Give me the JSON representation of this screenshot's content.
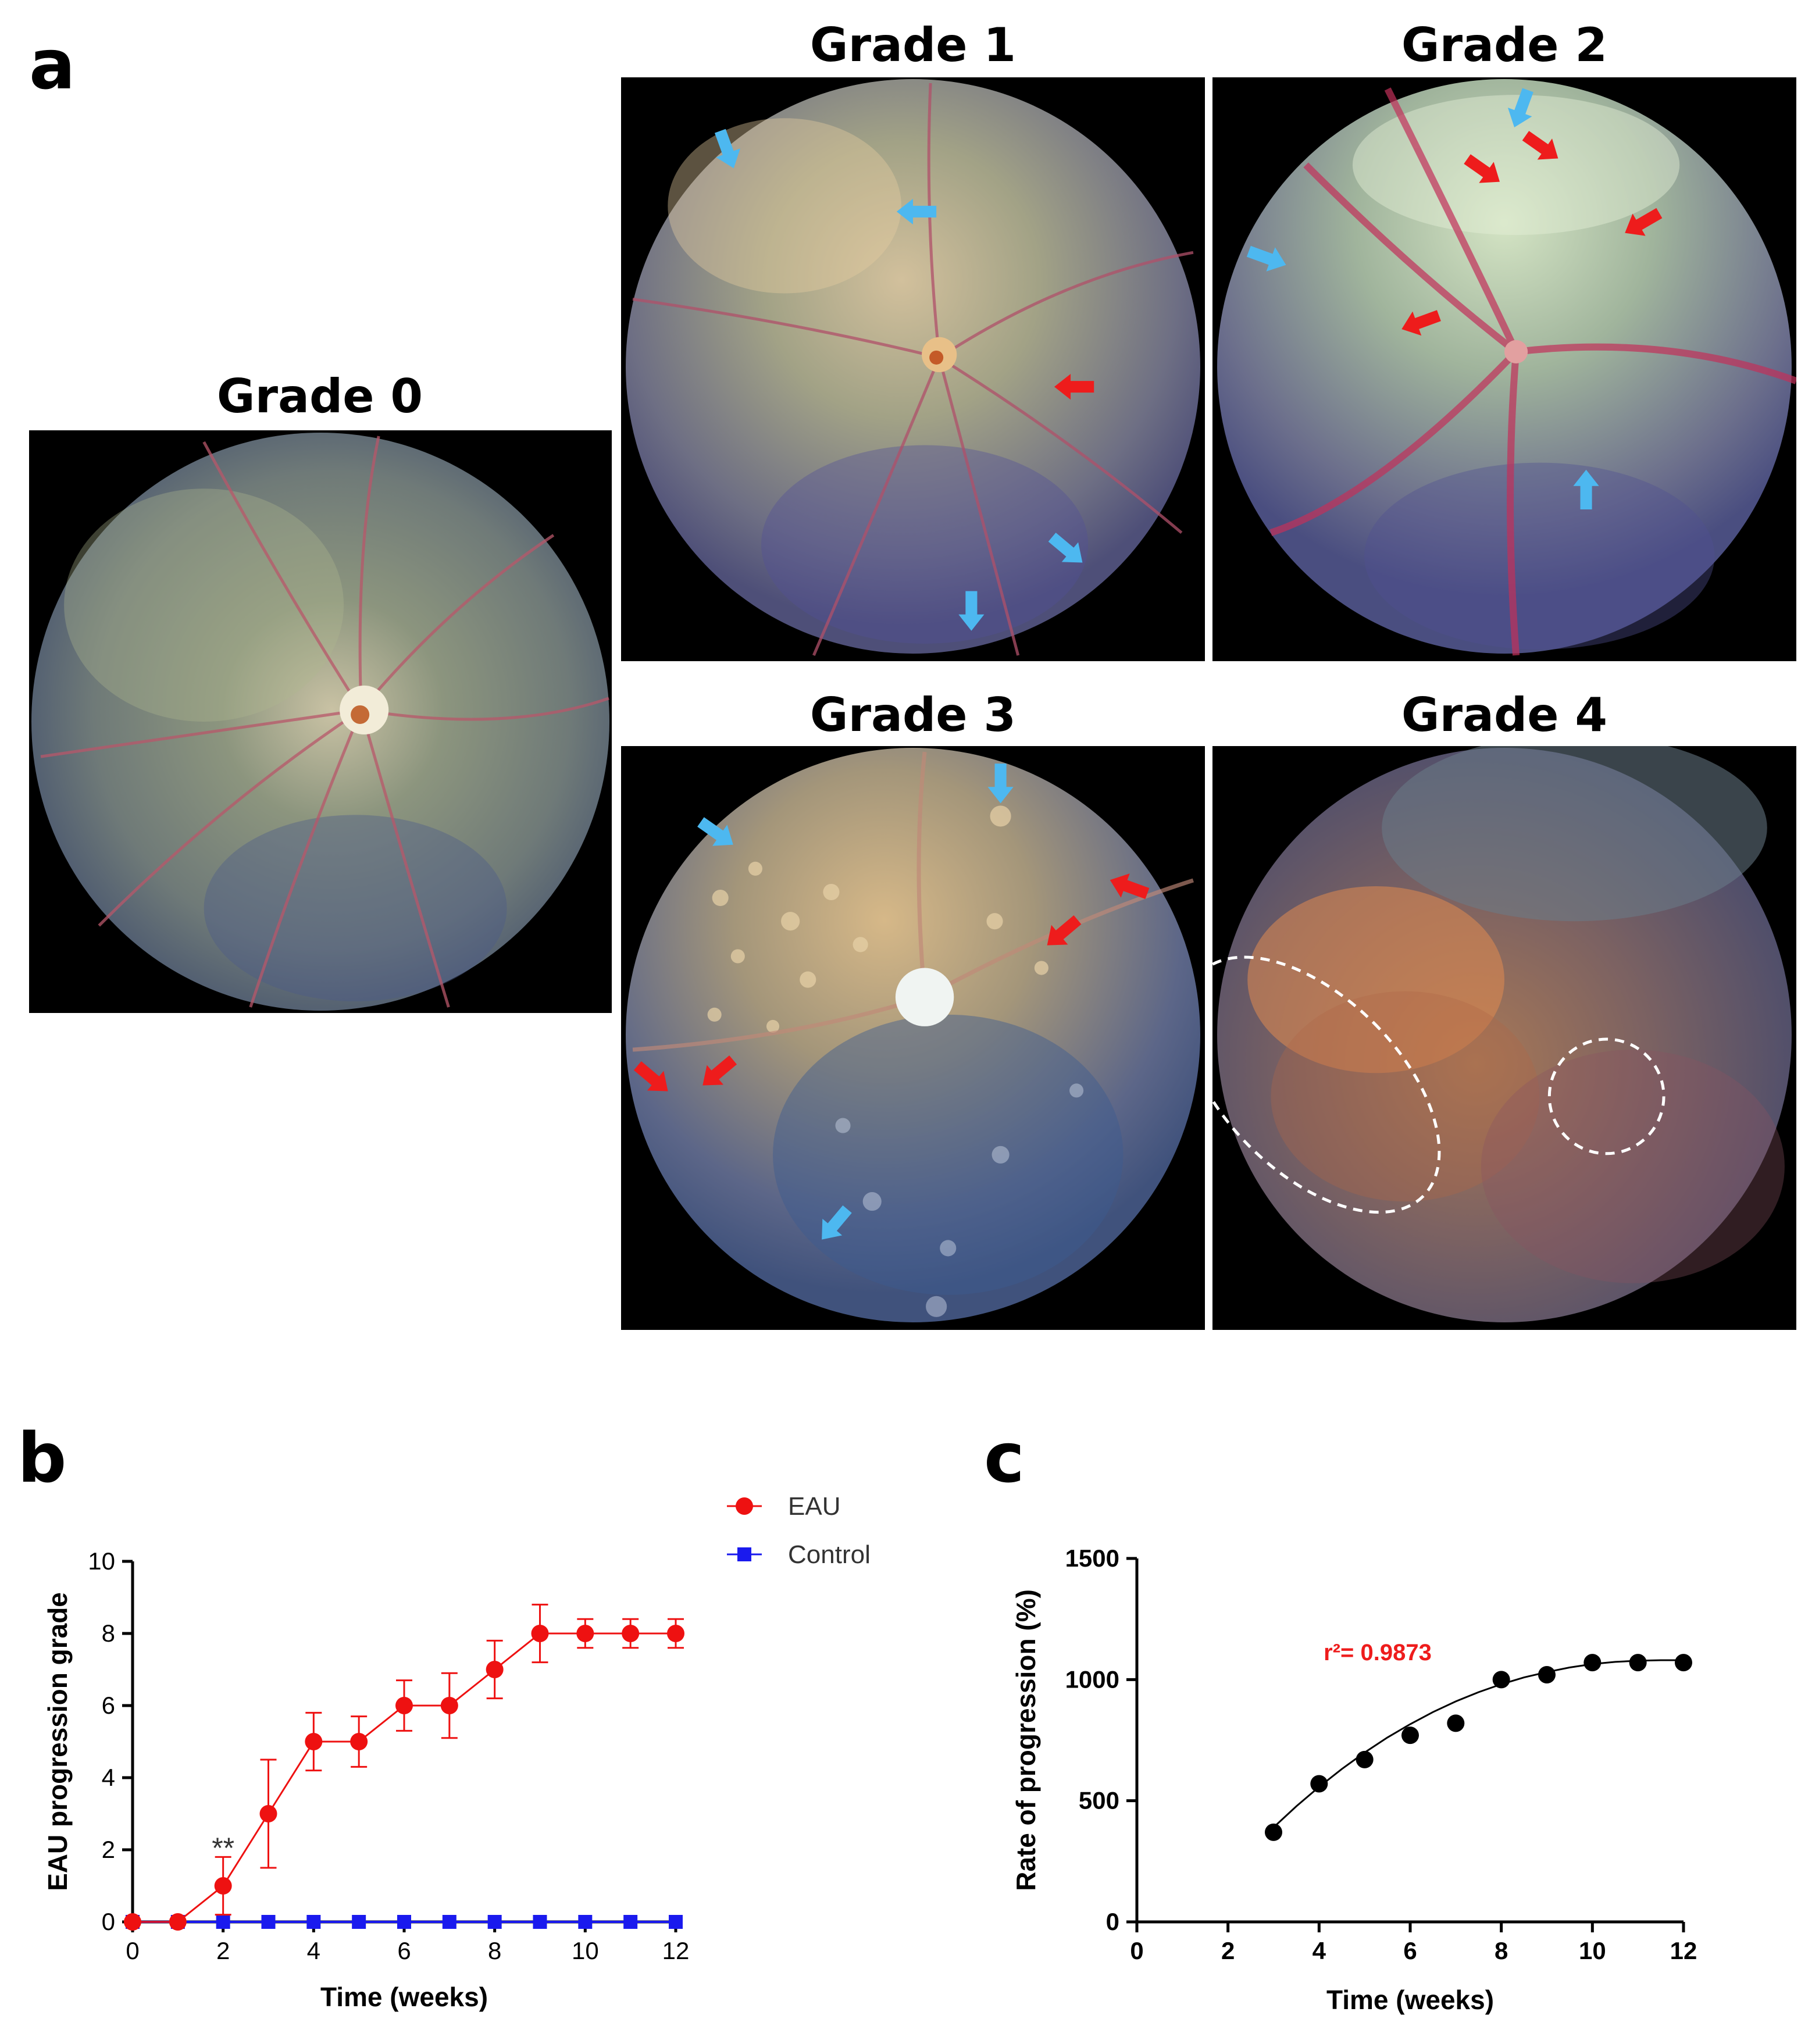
{
  "figure": {
    "panel_a": {
      "letter": "a",
      "grades": [
        {
          "id": "g0",
          "title": "Grade 0"
        },
        {
          "id": "g1",
          "title": "Grade 1"
        },
        {
          "id": "g2",
          "title": "Grade 2"
        },
        {
          "id": "g3",
          "title": "Grade 3"
        },
        {
          "id": "g4",
          "title": "Grade 4"
        }
      ],
      "arrow_colors": {
        "blue": "#4db8f0",
        "red": "#ee1c1c"
      }
    },
    "panel_b": {
      "letter": "b"
    },
    "panel_c": {
      "letter": "c"
    }
  },
  "chart_data": [
    {
      "id": "b",
      "type": "line",
      "xlabel": "Time (weeks)",
      "ylabel": "EAU progression grade",
      "xlim": [
        0,
        12
      ],
      "ylim": [
        0,
        10
      ],
      "xticks": [
        0,
        2,
        4,
        6,
        8,
        10,
        12
      ],
      "yticks": [
        0,
        2,
        4,
        6,
        8,
        10
      ],
      "series": [
        {
          "name": "EAU",
          "color": "#ee1111",
          "marker": "circle",
          "x": [
            0,
            1,
            2,
            3,
            4,
            5,
            6,
            7,
            8,
            9,
            10,
            11,
            12
          ],
          "y": [
            0,
            0,
            1,
            3,
            5,
            5,
            6,
            6,
            7,
            8,
            8,
            8,
            8
          ],
          "err": [
            0,
            0,
            0.8,
            1.5,
            0.8,
            0.7,
            0.7,
            0.9,
            0.8,
            0.8,
            0.4,
            0.4,
            0.4
          ]
        },
        {
          "name": "Control",
          "color": "#1a1aee",
          "marker": "square",
          "x": [
            0,
            1,
            2,
            3,
            4,
            5,
            6,
            7,
            8,
            9,
            10,
            11,
            12
          ],
          "y": [
            0,
            0,
            0,
            0,
            0,
            0,
            0,
            0,
            0,
            0,
            0,
            0,
            0
          ]
        }
      ],
      "annotations": [
        {
          "x": 2,
          "y": 1,
          "text": "**"
        }
      ],
      "legend": {
        "placement": "top-right",
        "entries": [
          "EAU",
          "Control"
        ]
      }
    },
    {
      "id": "c",
      "type": "scatter",
      "xlabel": "Time (weeks)",
      "ylabel": "Rate of progression (%)",
      "xlim": [
        0,
        12
      ],
      "ylim": [
        0,
        1500
      ],
      "xticks": [
        0,
        2,
        4,
        6,
        8,
        10,
        12
      ],
      "yticks": [
        0,
        500,
        1000,
        1500
      ],
      "series": [
        {
          "name": "points",
          "color": "#000000",
          "x": [
            3,
            4,
            5,
            6,
            7,
            8,
            9,
            10,
            11,
            12
          ],
          "y": [
            370,
            570,
            670,
            770,
            820,
            1000,
            1020,
            1070,
            1070,
            1070
          ]
        }
      ],
      "fit": {
        "type": "polynomial",
        "color": "#000000",
        "x": [
          3,
          3.5,
          4,
          4.5,
          5,
          5.5,
          6,
          6.5,
          7,
          7.5,
          8,
          8.5,
          9,
          9.5,
          10,
          10.5,
          11,
          11.5,
          12
        ],
        "y": [
          390,
          477,
          557,
          631,
          699,
          761,
          816,
          866,
          910,
          948,
          981,
          1009,
          1031,
          1050,
          1064,
          1073,
          1078,
          1080,
          1080
        ]
      },
      "annotation": {
        "text": "r²= 0.9873",
        "color": "#ee1c1c",
        "x": 4.1,
        "y": 1080
      }
    }
  ]
}
